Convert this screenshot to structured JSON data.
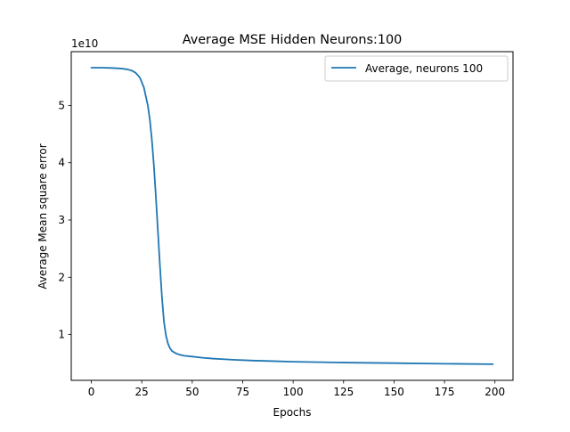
{
  "chart_data": {
    "type": "line",
    "title": "Average MSE Hidden Neurons:100",
    "xlabel": "Epochs",
    "ylabel": "Average Mean square error",
    "y_offset_label": "1e10",
    "y_scale": 10000000000,
    "xlim": [
      -9.95,
      208.95
    ],
    "ylim": [
      0.2,
      5.94
    ],
    "x_ticks": [
      0,
      25,
      50,
      75,
      100,
      125,
      150,
      175,
      200
    ],
    "y_ticks": [
      1,
      2,
      3,
      4,
      5
    ],
    "grid": false,
    "legend_position": "top-right",
    "series": [
      {
        "name": "Average, neurons 100",
        "color": "#1f77b4",
        "x": [
          0,
          5,
          10,
          15,
          18,
          20,
          22,
          24,
          26,
          28,
          29,
          30,
          31,
          32,
          33,
          34,
          35,
          36,
          37,
          38,
          39,
          40,
          42,
          44,
          46,
          50,
          55,
          60,
          70,
          80,
          90,
          100,
          125,
          150,
          175,
          199
        ],
        "y": [
          5.66,
          5.66,
          5.655,
          5.645,
          5.63,
          5.61,
          5.57,
          5.49,
          5.32,
          5.0,
          4.75,
          4.4,
          3.95,
          3.4,
          2.8,
          2.2,
          1.65,
          1.22,
          0.98,
          0.84,
          0.76,
          0.71,
          0.67,
          0.645,
          0.63,
          0.615,
          0.595,
          0.58,
          0.56,
          0.545,
          0.535,
          0.525,
          0.51,
          0.5,
          0.49,
          0.482
        ]
      }
    ]
  }
}
